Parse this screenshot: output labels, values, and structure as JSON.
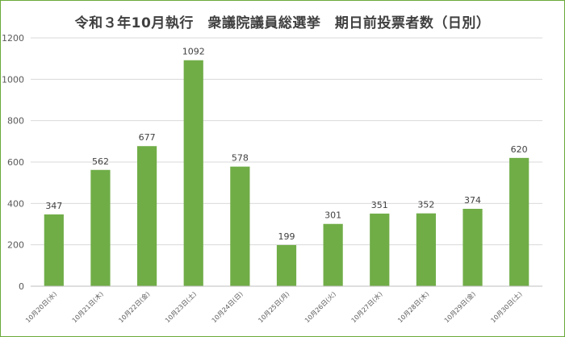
{
  "chart_data": {
    "type": "bar",
    "title": "令和３年10月執行　衆議院議員総選挙　期日前投票者数（日別）",
    "xlabel": "",
    "ylabel": "",
    "categories": [
      "10月20日(水)",
      "10月21日(木)",
      "10月22日(金)",
      "10月23日(土)",
      "10月24日(日)",
      "10月25日(月)",
      "10月26日(火)",
      "10月27日(水)",
      "10月28日(木)",
      "10月29日(金)",
      "10月30日(土)"
    ],
    "values": [
      347,
      562,
      677,
      1092,
      578,
      199,
      301,
      351,
      352,
      374,
      620
    ],
    "ylim": [
      0,
      1200
    ],
    "yticks": [
      0,
      200,
      400,
      600,
      800,
      1000,
      1200
    ],
    "grid": true,
    "legend": "none",
    "colors": {
      "bar": "#70ad47",
      "grid": "#d9d9d9",
      "axis": "#bfbfbf",
      "frame": "#6aaa3a"
    }
  }
}
